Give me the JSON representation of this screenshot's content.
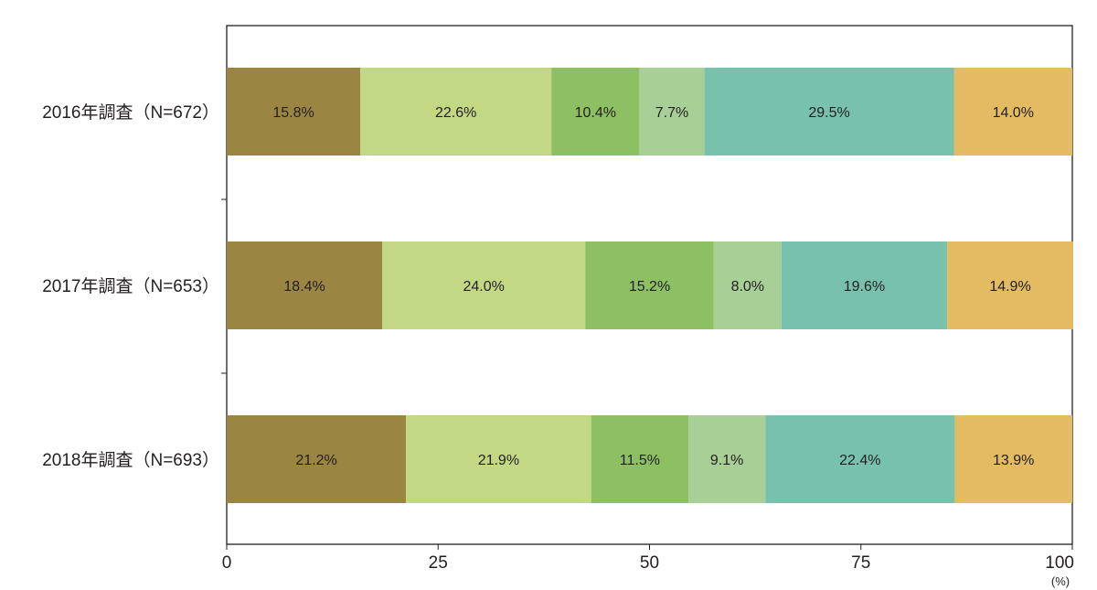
{
  "chart_data": {
    "type": "bar",
    "orientation": "horizontal",
    "stacked": true,
    "categories": [
      "2016年調査（N=672）",
      "2017年調査（N=653）",
      "2018年調査（N=693）"
    ],
    "series": [
      {
        "values": [
          15.8,
          18.4,
          21.2
        ],
        "labels": [
          "15.8%",
          "18.4%",
          "21.2%"
        ],
        "color": "#9b8543"
      },
      {
        "values": [
          22.6,
          24.0,
          21.9
        ],
        "labels": [
          "22.6%",
          "24.0%",
          "21.9%"
        ],
        "color": "#c2d884"
      },
      {
        "values": [
          10.4,
          15.2,
          11.5
        ],
        "labels": [
          "10.4%",
          "15.2%",
          "11.5%"
        ],
        "color": "#8cc063"
      },
      {
        "values": [
          7.7,
          8.0,
          9.1
        ],
        "labels": [
          "7.7%",
          "8.0%",
          "9.1%"
        ],
        "color": "#a8cf95"
      },
      {
        "values": [
          29.5,
          19.6,
          22.4
        ],
        "labels": [
          "29.5%",
          "19.6%",
          "22.4%"
        ],
        "color": "#77c1ad"
      },
      {
        "values": [
          14.0,
          14.9,
          13.9
        ],
        "labels": [
          "14.0%",
          "14.9%",
          "13.9%"
        ],
        "color": "#e2bb63"
      }
    ],
    "xlim": [
      0,
      100
    ],
    "xticks": [
      "0",
      "25",
      "50",
      "75",
      "100"
    ],
    "xunit": "(%)",
    "grid": false,
    "legend": "none"
  }
}
